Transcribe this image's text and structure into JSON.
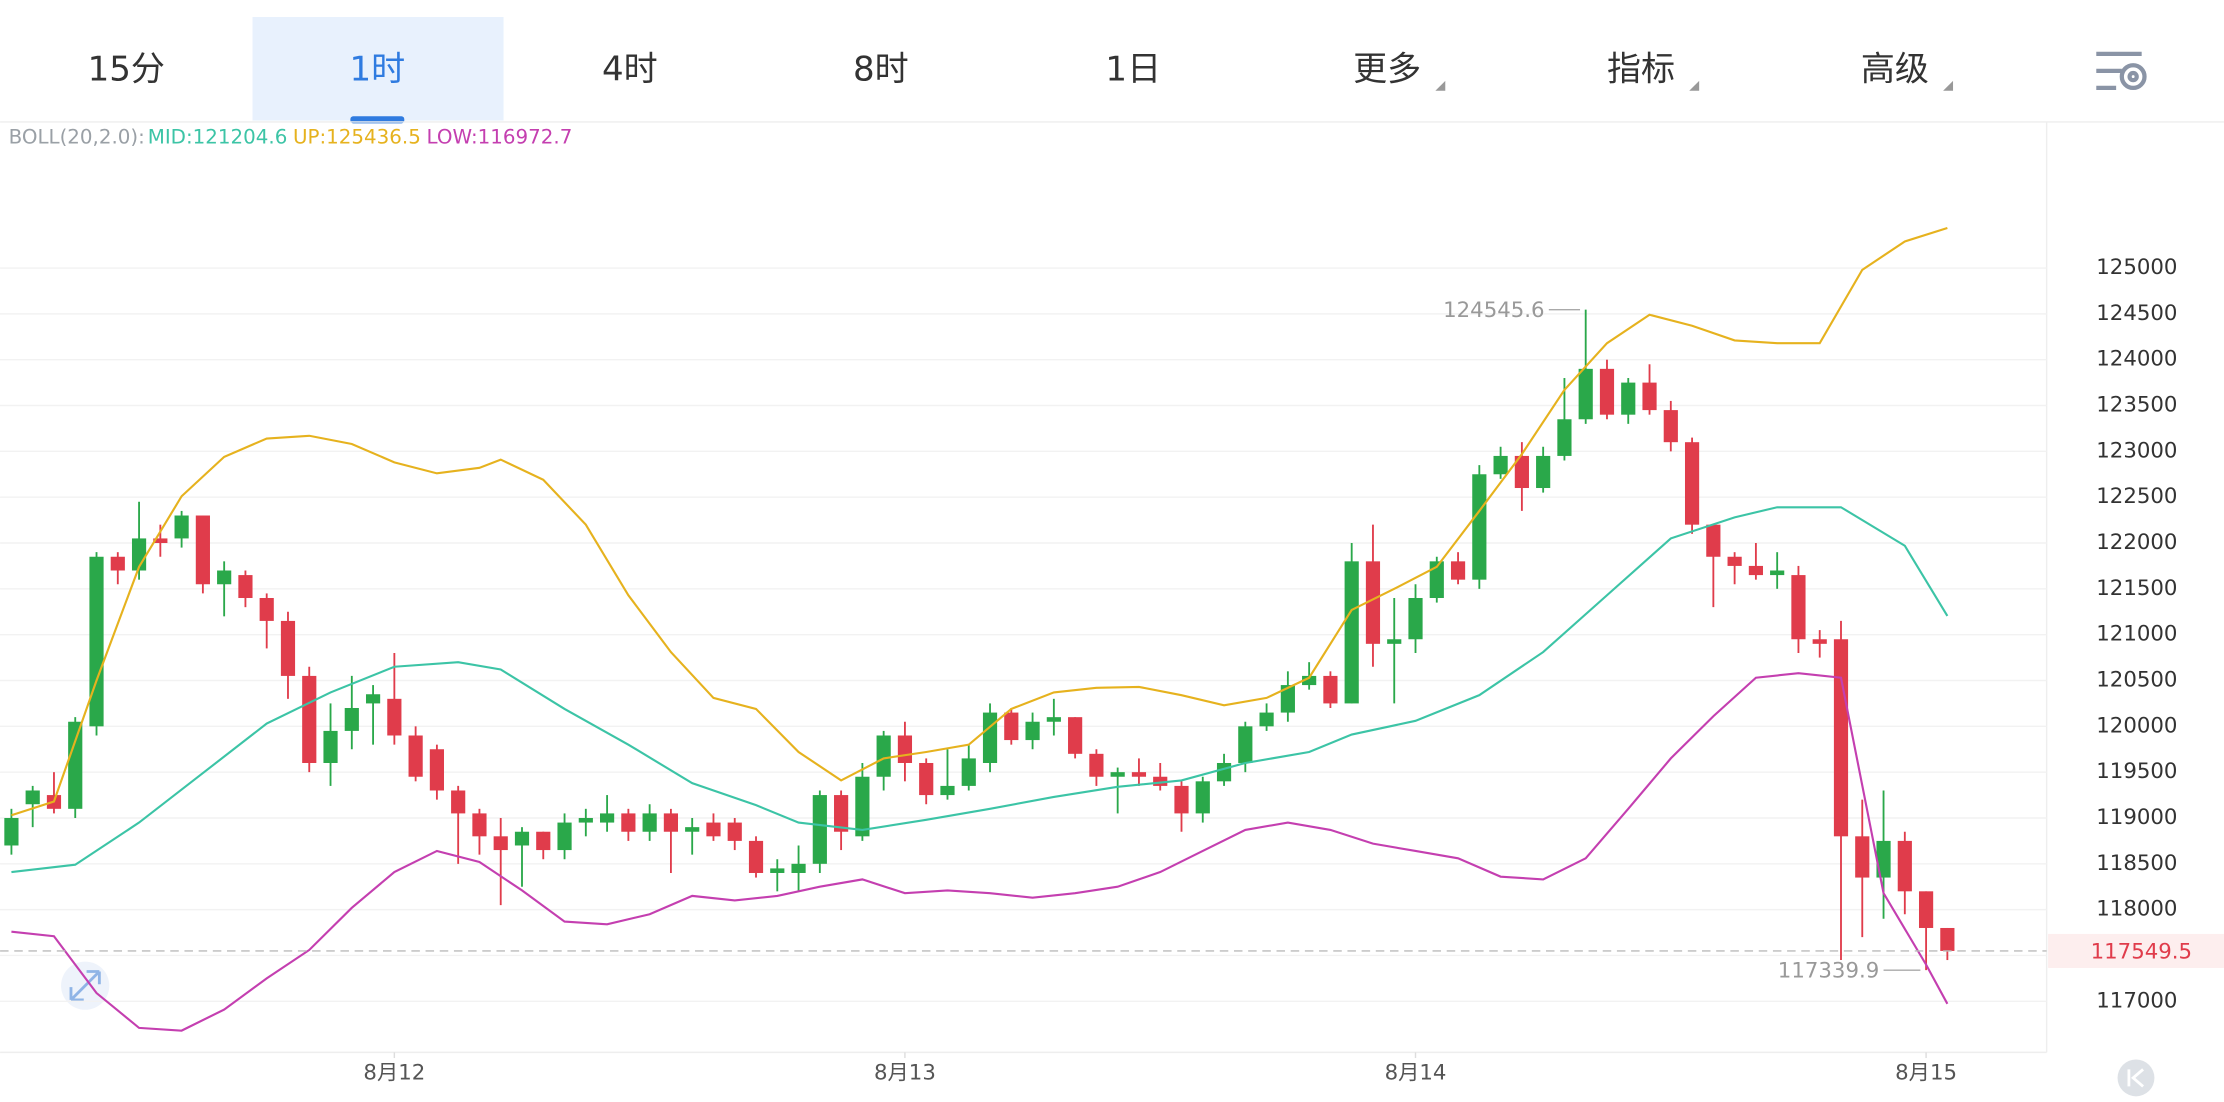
{
  "toolbar": {
    "tabs": [
      "15分",
      "1时",
      "4时",
      "8时",
      "1日",
      "更多",
      "指标",
      "高级"
    ],
    "active": 1,
    "dropdown_tabs": [
      5,
      6,
      7
    ]
  },
  "chart_data": {
    "type": "candlestick",
    "indicator": "BOLL(20,2.0):",
    "categories": [
      null,
      null,
      null,
      null,
      null,
      null,
      null,
      null,
      null,
      null,
      null,
      null,
      null,
      null,
      null,
      null,
      null,
      null,
      null,
      null,
      null,
      null,
      null,
      null,
      null,
      null,
      null,
      null,
      null,
      null,
      null,
      null,
      null,
      null,
      null,
      null,
      null,
      null,
      null,
      null,
      null,
      null,
      null,
      null,
      null,
      null,
      null,
      null,
      null,
      null,
      null,
      null,
      null,
      null,
      null,
      null,
      null,
      null,
      null,
      null,
      null,
      null,
      null,
      null,
      null,
      null,
      null,
      null,
      null,
      null,
      null,
      null,
      null,
      null,
      null,
      null,
      null,
      null,
      null,
      null,
      null,
      null,
      null,
      null,
      null,
      null,
      null,
      null,
      null,
      null,
      null,
      null
    ],
    "open": [
      118700,
      119150,
      119250,
      119100,
      120000,
      121850,
      121700,
      122050,
      122050,
      122300,
      121550,
      121650,
      121400,
      121150,
      120550,
      119600,
      119950,
      120250,
      120300,
      119900,
      119750,
      119300,
      119050,
      118800,
      118700,
      118850,
      118650,
      118950,
      118950,
      119050,
      118850,
      119050,
      118850,
      118950,
      118950,
      118750,
      118400,
      118400,
      118500,
      119250,
      118800,
      119450,
      119900,
      119600,
      119250,
      119350,
      119600,
      120150,
      119850,
      120050,
      120100,
      119700,
      119450,
      119500,
      119450,
      119350,
      119050,
      119400,
      119600,
      120000,
      120150,
      120450,
      120550,
      120250,
      121800,
      120900,
      120950,
      121400,
      121800,
      121600,
      122750,
      122950,
      122600,
      122950,
      123350,
      123900,
      123400,
      123750,
      123450,
      123100,
      122200,
      121850,
      121750,
      121650,
      121650,
      120950,
      120950,
      118800,
      118350,
      118750,
      118200,
      117800
    ],
    "high": [
      119100,
      119350,
      119500,
      120100,
      121900,
      121900,
      122450,
      122200,
      122350,
      122300,
      121800,
      121700,
      121450,
      121250,
      120650,
      120250,
      120550,
      120450,
      120800,
      120000,
      119800,
      119350,
      119100,
      119000,
      118900,
      118850,
      119050,
      119100,
      119250,
      119100,
      119150,
      119100,
      119000,
      119050,
      119000,
      118800,
      118550,
      118700,
      119300,
      119300,
      119600,
      119950,
      120050,
      119650,
      119750,
      119800,
      120250,
      120200,
      120150,
      120300,
      120100,
      119750,
      119550,
      119650,
      119600,
      119400,
      119450,
      119700,
      120050,
      120250,
      120600,
      120700,
      120600,
      122000,
      122200,
      121400,
      121550,
      121850,
      121900,
      122850,
      123050,
      123100,
      123050,
      123800,
      124545.6,
      124000,
      123800,
      123950,
      123550,
      123150,
      122200,
      121900,
      122000,
      121900,
      121750,
      121050,
      121150,
      119200,
      119300,
      118850,
      118200,
      117800
    ],
    "low": [
      118600,
      118900,
      119050,
      119000,
      119900,
      121550,
      121600,
      121850,
      121950,
      121450,
      121200,
      121300,
      120850,
      120300,
      119500,
      119350,
      119750,
      119800,
      119800,
      119400,
      119200,
      118500,
      118600,
      118050,
      118250,
      118550,
      118550,
      118800,
      118850,
      118750,
      118750,
      118400,
      118600,
      118750,
      118650,
      118350,
      118200,
      118200,
      118400,
      118650,
      118750,
      119300,
      119400,
      119150,
      119200,
      119300,
      119500,
      119800,
      119750,
      119900,
      119650,
      119350,
      119050,
      119350,
      119300,
      118850,
      118950,
      119350,
      119500,
      119950,
      120050,
      120400,
      120200,
      120250,
      120650,
      120250,
      120800,
      121350,
      121550,
      121500,
      122700,
      122350,
      122550,
      122900,
      123300,
      123350,
      123300,
      123400,
      123000,
      122100,
      121300,
      121550,
      121600,
      121500,
      120800,
      120750,
      117450,
      117700,
      117900,
      117950,
      117339.9,
      117450
    ],
    "close": [
      119000,
      119300,
      119100,
      120050,
      121850,
      121700,
      122050,
      122000,
      122300,
      121550,
      121700,
      121400,
      121150,
      120550,
      119600,
      119950,
      120200,
      120350,
      119900,
      119450,
      119300,
      119050,
      118800,
      118650,
      118850,
      118650,
      118950,
      119000,
      119050,
      118850,
      119050,
      118850,
      118900,
      118800,
      118750,
      118400,
      118450,
      118500,
      119250,
      118850,
      119450,
      119900,
      119600,
      119250,
      119350,
      119650,
      120150,
      119850,
      120050,
      120100,
      119700,
      119450,
      119500,
      119450,
      119350,
      119050,
      119400,
      119600,
      120000,
      120150,
      120450,
      120550,
      120250,
      121800,
      120900,
      120950,
      121400,
      121800,
      121600,
      122750,
      122950,
      122600,
      122950,
      123350,
      123900,
      123400,
      123750,
      123450,
      123100,
      122200,
      121850,
      121750,
      121650,
      121700,
      120950,
      120900,
      118800,
      118350,
      118750,
      118200,
      117800,
      117549.5
    ],
    "up_color": "#2aa84a",
    "down_color": "#e03c4b",
    "series": [
      {
        "name": "MID:121204.6",
        "color": "#3cc4a6",
        "x": [
          0,
          3,
          6,
          9,
          12,
          15,
          18,
          21,
          23,
          26,
          29,
          32,
          35,
          37,
          40,
          43,
          46,
          49,
          52,
          55,
          58,
          61,
          63,
          66,
          69,
          72,
          75,
          78,
          81,
          83,
          86,
          89,
          91
        ],
        "values": [
          118410,
          118490,
          118950,
          119490,
          120030,
          120370,
          120650,
          120700,
          120620,
          120190,
          119800,
          119380,
          119140,
          118950,
          118870,
          118980,
          119100,
          119230,
          119340,
          119410,
          119600,
          119720,
          119910,
          120060,
          120340,
          120810,
          121430,
          122050,
          122280,
          122390,
          122390,
          121970,
          121204.6
        ]
      },
      {
        "name": "UP:125436.5",
        "color": "#e6b21e",
        "x": [
          0,
          2,
          4,
          6,
          8,
          10,
          12,
          14,
          16,
          18,
          20,
          22,
          23,
          25,
          27,
          29,
          31,
          33,
          35,
          37,
          39,
          41,
          43,
          45,
          47,
          49,
          51,
          53,
          55,
          57,
          59,
          61,
          63,
          65,
          67,
          69,
          71,
          73,
          75,
          77,
          79,
          81,
          83,
          85,
          87,
          89,
          91
        ],
        "values": [
          119030,
          119180,
          120500,
          121740,
          122510,
          122940,
          123140,
          123170,
          123080,
          122880,
          122760,
          122820,
          122910,
          122690,
          122200,
          121430,
          120810,
          120310,
          120190,
          119720,
          119410,
          119650,
          119720,
          119800,
          120190,
          120370,
          120420,
          120430,
          120340,
          120230,
          120310,
          120530,
          121270,
          121500,
          121740,
          122350,
          122970,
          123670,
          124180,
          124490,
          124370,
          124210,
          124180,
          124180,
          124980,
          125290,
          125436.5
        ]
      },
      {
        "name": "LOW:116972.7",
        "color": "#c43fb0",
        "x": [
          0,
          2,
          4,
          6,
          8,
          10,
          12,
          14,
          16,
          18,
          20,
          22,
          24,
          26,
          28,
          30,
          32,
          34,
          36,
          38,
          40,
          42,
          44,
          46,
          48,
          50,
          52,
          54,
          56,
          58,
          60,
          62,
          64,
          66,
          68,
          70,
          72,
          74,
          76,
          78,
          80,
          82,
          84,
          86,
          88,
          90,
          91
        ],
        "values": [
          117760,
          117710,
          117090,
          116710,
          116680,
          116910,
          117250,
          117560,
          118020,
          118410,
          118640,
          118520,
          118210,
          117870,
          117840,
          117950,
          118150,
          118100,
          118150,
          118250,
          118330,
          118180,
          118210,
          118180,
          118130,
          118180,
          118250,
          118410,
          118640,
          118870,
          118950,
          118870,
          118720,
          118640,
          118560,
          118360,
          118330,
          118560,
          119100,
          119650,
          120110,
          120530,
          120580,
          120530,
          118180,
          117400,
          116972.7
        ]
      }
    ],
    "annotations": [
      {
        "index": 74,
        "field": "high"
      },
      {
        "index": 90,
        "field": "low"
      }
    ],
    "last_index": 91,
    "ylim": [
      116443,
      126578
    ],
    "yticks": [
      117000,
      117500,
      118000,
      118500,
      119000,
      119500,
      120000,
      120500,
      121000,
      121500,
      122000,
      122500,
      123000,
      123500,
      124000,
      124500,
      125000
    ],
    "xticks": [
      {
        "value": 18,
        "label": "8月12"
      },
      {
        "value": 42,
        "label": "8月13"
      },
      {
        "value": 66,
        "label": "8月14"
      },
      {
        "value": 90,
        "label": "8月15"
      }
    ],
    "grid": true
  }
}
